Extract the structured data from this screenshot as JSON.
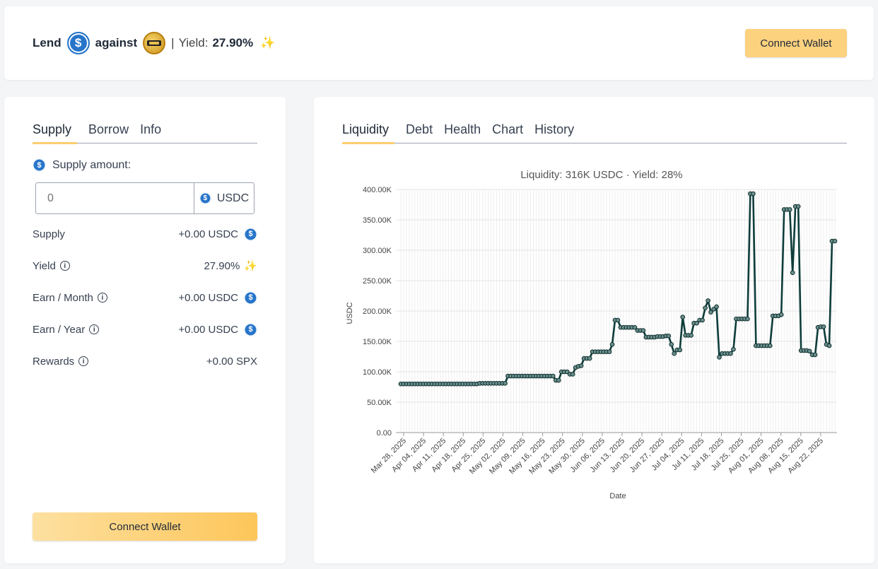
{
  "header": {
    "lend": "Lend",
    "against": "against",
    "separator": "|",
    "yield_label": "Yield:",
    "yield_value": "27.90%",
    "sparkle": "✨",
    "connect_label": "Connect Wallet",
    "usdc_icon": "usdc-coin-icon",
    "spx_icon": "spx-coin-icon"
  },
  "left": {
    "tabs": [
      "Supply",
      "Borrow",
      "Info"
    ],
    "active_tab": "Supply",
    "supply_amount_label": "Supply amount:",
    "input": {
      "value": "",
      "placeholder": "0",
      "unit": "USDC"
    },
    "rows": [
      {
        "label": "Supply",
        "value": "+0.00 USDC"
      },
      {
        "label": "Yield",
        "value": "27.90%"
      },
      {
        "label": "Earn / Month",
        "value": "+0.00 USDC"
      },
      {
        "label": "Earn / Year",
        "value": "+0.00 USDC"
      },
      {
        "label": "Rewards",
        "value": "+0.00 SPX"
      }
    ],
    "connect_label": "Connect Wallet"
  },
  "right": {
    "tabs": [
      "Liquidity",
      "Debt",
      "Health",
      "Chart",
      "History"
    ],
    "active_tab": "Liquidity"
  },
  "colors": {
    "accent": "#fdd27f",
    "usdc": "#2775ca",
    "line": "#0d3d3a"
  },
  "chart_data": {
    "type": "line",
    "title": "Liquidity: 316K USDC · Yield: 28%",
    "xlabel": "Date",
    "ylabel": "USDC",
    "ylim": [
      0,
      400000
    ],
    "yticks": [
      "0.00",
      "50.00K",
      "100.00K",
      "150.00K",
      "200.00K",
      "250.00K",
      "300.00K",
      "350.00K",
      "400.00K"
    ],
    "xticks": [
      "Mar 28, 2025",
      "Apr 04, 2025",
      "Apr 11, 2025",
      "Apr 18, 2025",
      "Apr 25, 2025",
      "May 02, 2025",
      "May 09, 2025",
      "May 16, 2025",
      "May 23, 2025",
      "May 30, 2025",
      "Jun 06, 2025",
      "Jun 13, 2025",
      "Jun 20, 2025",
      "Jun 27, 2025",
      "Jul 04, 2025",
      "Jul 11, 2025",
      "Jul 18, 2025",
      "Jul 25, 2025",
      "Aug 01, 2025",
      "Aug 08, 2025",
      "Aug 15, 2025",
      "Aug 22, 2025"
    ],
    "grid": true,
    "x_start": "Mar 28, 2025",
    "x_end": "Aug 28, 2025",
    "series": [
      {
        "values": [
          80000,
          80000,
          80000,
          80000,
          80000,
          80000,
          80000,
          80000,
          80000,
          80000,
          80000,
          80000,
          80000,
          80000,
          80000,
          80000,
          80000,
          80000,
          80000,
          80000,
          80000,
          80000,
          80000,
          80000,
          80000,
          80000,
          80000,
          80000,
          81000,
          81000,
          81000,
          81000,
          81000,
          81000,
          81000,
          81000,
          81000,
          81000,
          93000,
          93000,
          93000,
          93000,
          93000,
          93000,
          93000,
          93000,
          93000,
          93000,
          93000,
          93000,
          93000,
          93000,
          93000,
          93000,
          93000,
          86000,
          86000,
          100000,
          100000,
          100000,
          96000,
          96000,
          107000,
          109000,
          110000,
          122000,
          122000,
          122000,
          133000,
          133000,
          133000,
          133000,
          133000,
          133000,
          133000,
          145000,
          185000,
          185000,
          173000,
          173000,
          173000,
          173000,
          173000,
          173000,
          168000,
          168000,
          168000,
          157000,
          157000,
          157000,
          157000,
          158000,
          158000,
          158000,
          159000,
          159000,
          145000,
          130000,
          136000,
          136000,
          190000,
          160000,
          160000,
          160000,
          180000,
          180000,
          185000,
          185000,
          205000,
          217000,
          198000,
          203000,
          207000,
          124000,
          130000,
          130000,
          130000,
          130000,
          137000,
          187000,
          187000,
          187000,
          187000,
          187000,
          393000,
          393000,
          143000,
          143000,
          143000,
          143000,
          143000,
          143000,
          192000,
          192000,
          192000,
          194000,
          367000,
          367000,
          367000,
          263000,
          372000,
          372000,
          135000,
          135000,
          135000,
          134000,
          128000,
          128000,
          173000,
          174000,
          174000,
          145000,
          143000,
          315000,
          315000
        ]
      }
    ]
  }
}
